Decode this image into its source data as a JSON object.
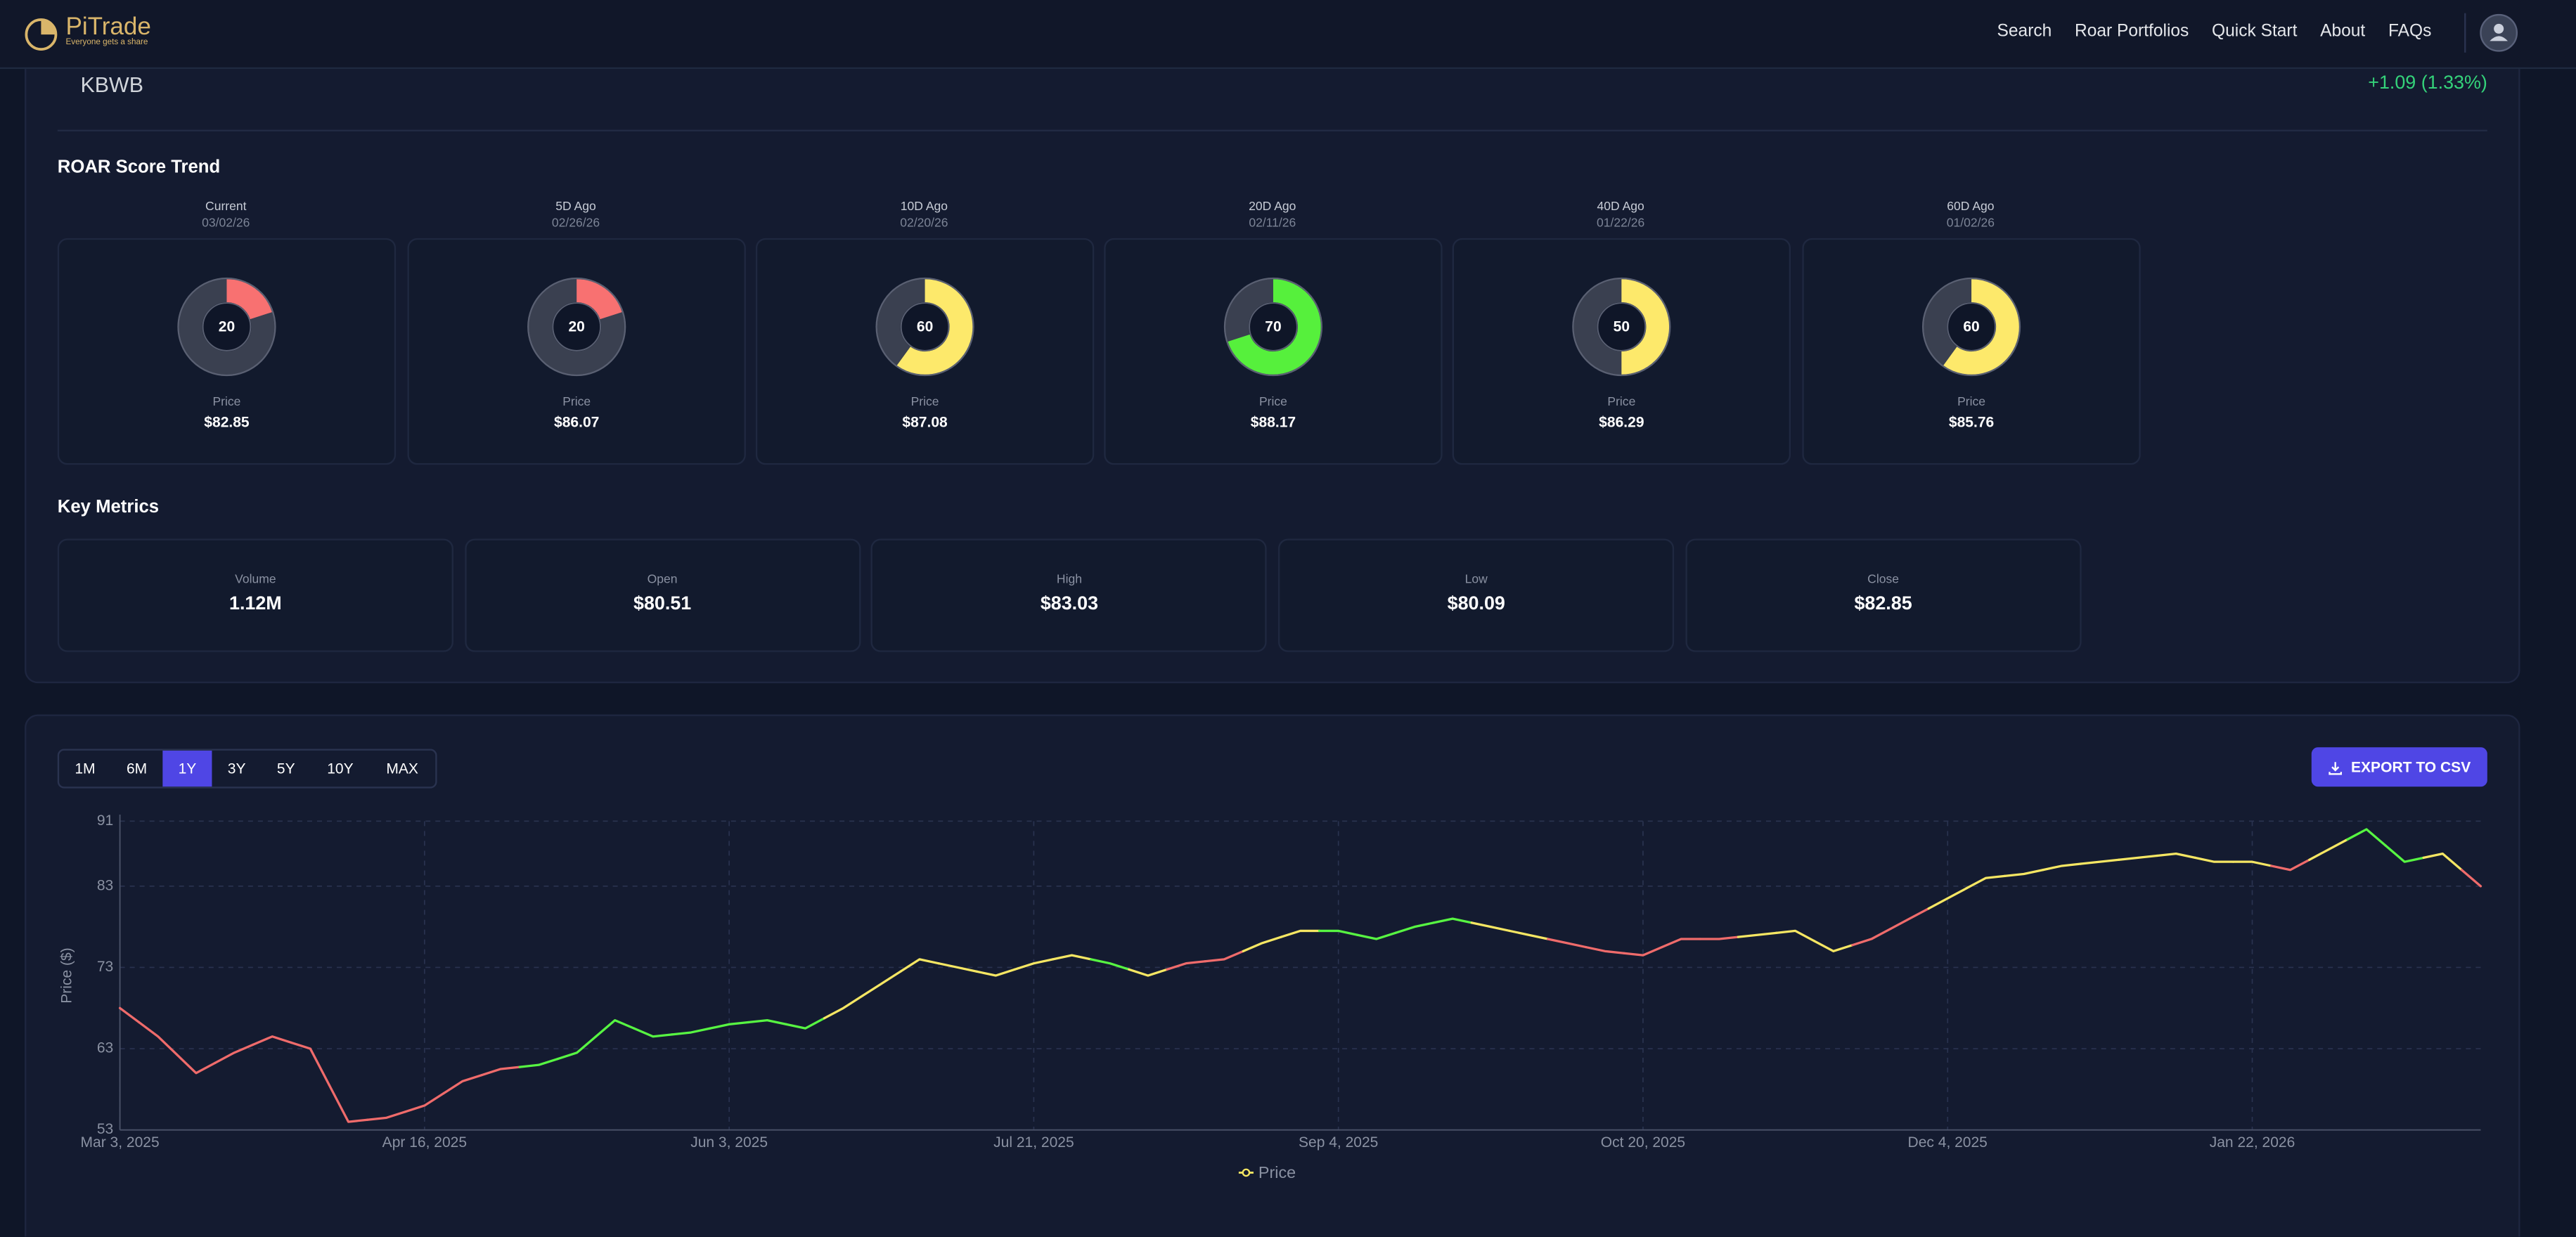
{
  "nav": {
    "brand": "PiTrade",
    "tagline": "Everyone gets a share",
    "links": [
      "Search",
      "Roar Portfolios",
      "Quick Start",
      "About",
      "FAQs"
    ]
  },
  "ticker": {
    "symbol": "KBWB",
    "change": "+1.09 (1.33%)"
  },
  "roar": {
    "title": "ROAR Score Trend",
    "cards": [
      {
        "label": "Current",
        "date": "03/02/26",
        "score": 20,
        "color": "#f87171",
        "price_label": "Price",
        "price": "$82.85"
      },
      {
        "label": "5D Ago",
        "date": "02/26/26",
        "score": 20,
        "color": "#f87171",
        "price_label": "Price",
        "price": "$86.07"
      },
      {
        "label": "10D Ago",
        "date": "02/20/26",
        "score": 60,
        "color": "#fde96b",
        "price_label": "Price",
        "price": "$87.08"
      },
      {
        "label": "20D Ago",
        "date": "02/11/26",
        "score": 70,
        "color": "#56f03c",
        "price_label": "Price",
        "price": "$88.17"
      },
      {
        "label": "40D Ago",
        "date": "01/22/26",
        "score": 50,
        "color": "#fde96b",
        "price_label": "Price",
        "price": "$86.29"
      },
      {
        "label": "60D Ago",
        "date": "01/02/26",
        "score": 60,
        "color": "#fde96b",
        "price_label": "Price",
        "price": "$85.76"
      }
    ]
  },
  "metrics": {
    "title": "Key Metrics",
    "items": [
      {
        "label": "Volume",
        "value": "1.12M"
      },
      {
        "label": "Open",
        "value": "$80.51"
      },
      {
        "label": "High",
        "value": "$83.03"
      },
      {
        "label": "Low",
        "value": "$80.09"
      },
      {
        "label": "Close",
        "value": "$82.85"
      }
    ]
  },
  "controls": {
    "ranges": [
      "1M",
      "6M",
      "1Y",
      "3Y",
      "5Y",
      "10Y",
      "MAX"
    ],
    "active_range": "1Y",
    "export": "EXPORT TO CSV"
  },
  "chart_data": {
    "type": "line",
    "y_label": "Price ($)",
    "grid": true,
    "categories": [
      "Mar 3, 2025",
      null,
      null,
      null,
      null,
      null,
      null,
      null,
      "Apr 16, 2025",
      null,
      null,
      null,
      null,
      null,
      null,
      null,
      "Jun 3, 2025",
      null,
      null,
      null,
      null,
      null,
      null,
      null,
      "Jul 21, 2025",
      null,
      null,
      null,
      null,
      null,
      null,
      null,
      "Sep 4, 2025",
      null,
      null,
      null,
      null,
      null,
      null,
      null,
      "Oct 20, 2025",
      null,
      null,
      null,
      null,
      null,
      null,
      null,
      "Dec 4, 2025",
      null,
      null,
      null,
      null,
      null,
      null,
      null,
      "Jan 22, 2026",
      null,
      null,
      null,
      null,
      null,
      null
    ],
    "ylim": [
      53,
      91
    ],
    "yticks": [
      53,
      63,
      73,
      83,
      91
    ],
    "series": [
      {
        "name": "Price",
        "color": "#f5e663",
        "values": [
          68,
          64.5,
          60,
          62.5,
          64.5,
          63,
          54,
          54.5,
          56,
          59,
          60.5,
          61,
          62.5,
          66.5,
          64.5,
          65,
          66,
          66.5,
          65.5,
          68,
          71,
          74,
          73,
          72,
          73.5,
          74.5,
          73.5,
          72,
          73.5,
          74,
          76,
          77.5,
          77.5,
          76.5,
          78,
          79,
          78,
          77,
          76,
          75,
          74.5,
          76.5,
          76.5,
          77,
          77.5,
          75,
          76.5,
          79,
          81.5,
          84,
          84.5,
          85.5,
          86,
          86.5,
          87,
          86,
          86,
          85,
          87.5,
          90,
          86,
          87,
          83
        ],
        "colors": [
          "#ef6b6b",
          "#ef6b6b",
          "#ef6b6b",
          "#ef6b6b",
          "#ef6b6b",
          "#ef6b6b",
          "#ef6b6b",
          "#ef6b6b",
          "#ef6b6b",
          "#ef6b6b",
          "#ef6b6b",
          "#57f542",
          "#57f542",
          "#57f542",
          "#57f542",
          "#57f542",
          "#57f542",
          "#57f542",
          "#57f542",
          "#f5e663",
          "#f5e663",
          "#f5e663",
          "#f5e663",
          "#f5e663",
          "#f5e663",
          "#f5e663",
          "#57f542",
          "#f5e663",
          "#ef6b6b",
          "#ef6b6b",
          "#f5e663",
          "#f5e663",
          "#57f542",
          "#57f542",
          "#57f542",
          "#57f542",
          "#f5e663",
          "#f5e663",
          "#ef6b6b",
          "#ef6b6b",
          "#ef6b6b",
          "#ef6b6b",
          "#ef6b6b",
          "#f5e663",
          "#f5e663",
          "#f5e663",
          "#ef6b6b",
          "#ef6b6b",
          "#f5e663",
          "#f5e663",
          "#f5e663",
          "#f5e663",
          "#f5e663",
          "#f5e663",
          "#f5e663",
          "#f5e663",
          "#f5e663",
          "#ef6b6b",
          "#f5e663",
          "#57f542",
          "#57f542",
          "#f5e663",
          "#ef6b6b"
        ]
      }
    ]
  }
}
